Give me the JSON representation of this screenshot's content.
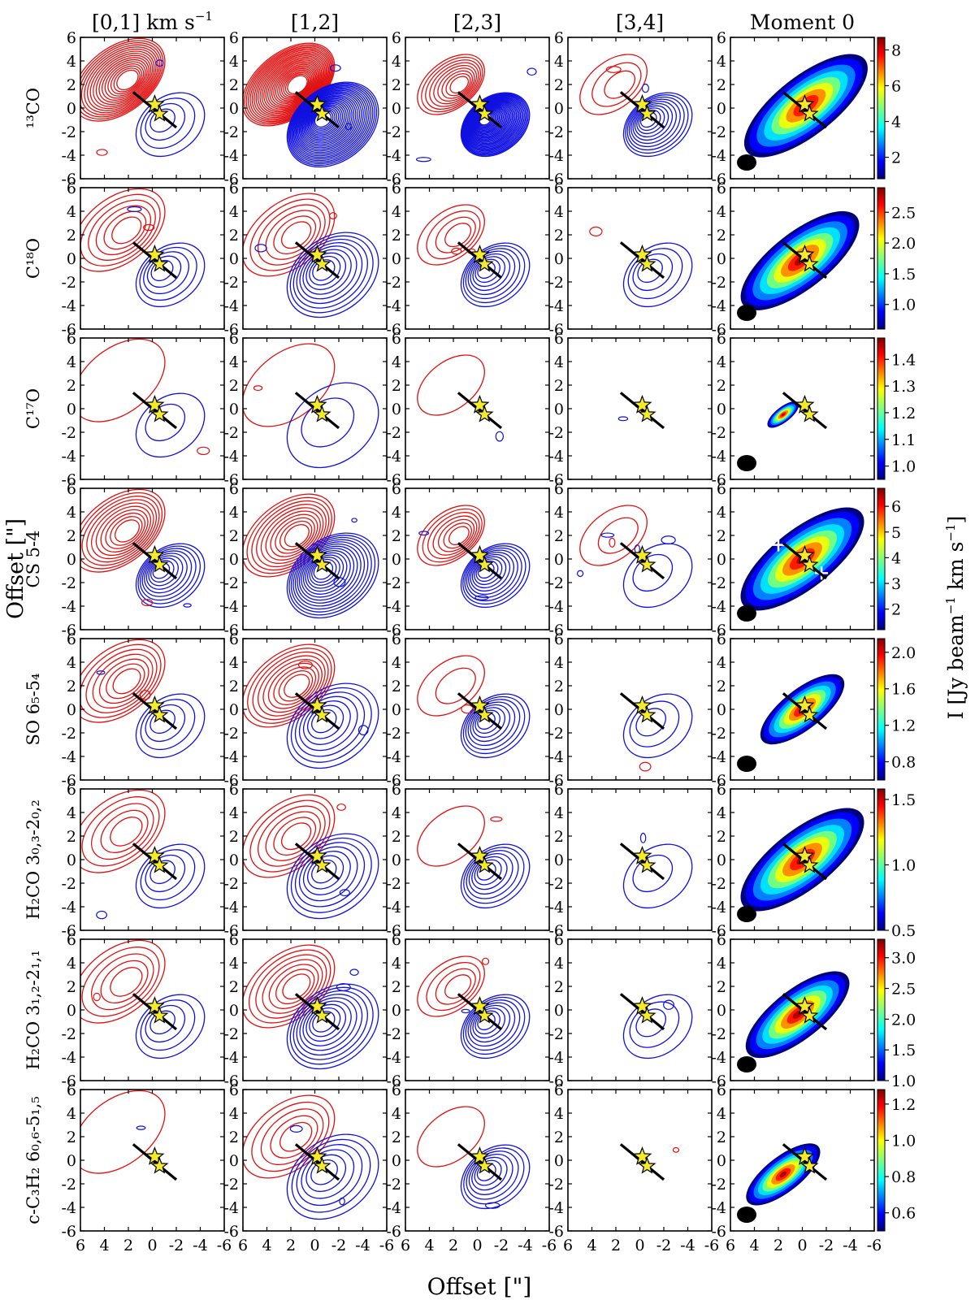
{
  "figure": {
    "column_headers": [
      "[0,1] km s",
      "[1,2]",
      "[2,3]",
      "[3,4]",
      "Moment 0"
    ],
    "header_unit_exponent": "−1",
    "x_axis_label": "Offset [\"]",
    "y_axis_label": "Offset [\"]",
    "colorbar_label": "I [Jy beam",
    "colorbar_label_tail": " km s",
    "colorbar_label_exp": "−1",
    "colorbar_label_close": "]",
    "tick_values": [
      "6",
      "4",
      "2",
      "0",
      "-2",
      "-4",
      "-6"
    ]
  },
  "rows": [
    {
      "label": "¹³CO",
      "cbar_ticks": [
        "2",
        "4",
        "6",
        "8"
      ],
      "cbar_range": [
        0.8,
        8.7
      ]
    },
    {
      "label": "C¹⁸O",
      "cbar_ticks": [
        "1.0",
        "1.5",
        "2.0",
        "2.5"
      ],
      "cbar_range": [
        0.6,
        2.9
      ]
    },
    {
      "label": "C¹⁷O",
      "cbar_ticks": [
        "1.0",
        "1.1",
        "1.2",
        "1.3",
        "1.4"
      ],
      "cbar_range": [
        0.95,
        1.48
      ]
    },
    {
      "label": "CS 5-4",
      "cbar_ticks": [
        "2",
        "3",
        "4",
        "5",
        "6"
      ],
      "cbar_range": [
        1.2,
        6.7
      ]
    },
    {
      "label": "SO 6₅-5₄",
      "cbar_ticks": [
        "0.8",
        "1.2",
        "1.6",
        "2.0"
      ],
      "cbar_range": [
        0.6,
        2.15
      ]
    },
    {
      "label": "H₂CO 3₀,₃-2₀,₂",
      "cbar_ticks": [
        "0.5",
        "1.0",
        "1.5"
      ],
      "cbar_range": [
        0.5,
        1.58
      ]
    },
    {
      "label": "H₂CO 3₁,₂-2₁,₁",
      "cbar_ticks": [
        "1.0",
        "1.5",
        "2.0",
        "2.5",
        "3.0"
      ],
      "cbar_range": [
        1.0,
        3.3
      ]
    },
    {
      "label": "c-C₃H₂ 6₀,₆-5₁,₅",
      "cbar_ticks": [
        "0.6",
        "0.8",
        "1.0",
        "1.2"
      ],
      "cbar_range": [
        0.5,
        1.28
      ]
    }
  ],
  "chart_data": {
    "type": "contour-grid",
    "velocity_bins_km_s": [
      "[0,1]",
      "[1,2]",
      "[2,3]",
      "[3,4]"
    ],
    "xlim": [
      6,
      -6
    ],
    "ylim": [
      -6,
      6
    ],
    "outflow_axis_pa_deg": -40,
    "protostar_position": [
      0,
      0
    ],
    "cs_moment0_markers": [
      [
        2.0,
        1.2
      ],
      [
        -1.6,
        -1.2
      ]
    ],
    "series": [
      {
        "name": "redshifted",
        "color": "#e01010"
      },
      {
        "name": "blueshifted",
        "color": "#1010e0"
      }
    ],
    "moment0_colormap": "jet"
  }
}
